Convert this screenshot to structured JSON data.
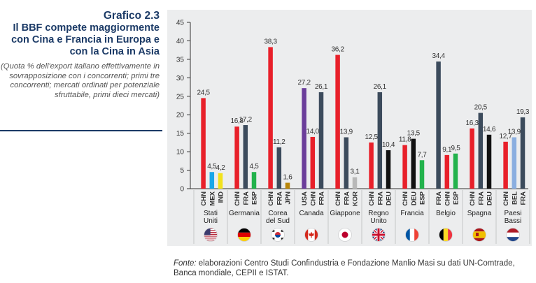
{
  "header": {
    "title": "Grafico 2.3",
    "subtitle": "Il BBF compete maggiormente con Cina e Francia in Europa e con la Cina in Asia",
    "note": "(Quota % dell'export italiano effettivamente in sovrapposizione con i concorrenti; primi tre concorrenti; mercati ordinati per potenziale sfruttabile, primi dieci mercati)"
  },
  "source": {
    "lead": "Fonte:",
    "text": " elaborazioni Centro Studi Confindustria e Fondazione Manlio Masi su dati UN-Comtrade, Banca mondiale, CEPII e ISTAT."
  },
  "chart_data": {
    "type": "bar",
    "ylim": [
      0,
      45
    ],
    "yticks": [
      0,
      5,
      10,
      15,
      20,
      25,
      30,
      35,
      40,
      45
    ],
    "grid": false,
    "legend": "none",
    "groups": [
      {
        "market": "Stati Uniti",
        "flag": "us-flag",
        "bars": [
          {
            "competitor": "CHN",
            "value": 24.5,
            "label": "24,5",
            "color": "#e8202a"
          },
          {
            "competitor": "MEX",
            "value": 4.5,
            "label": "4,5",
            "color": "#1aa7e8"
          },
          {
            "competitor": "IND",
            "value": 4.2,
            "label": "4,2",
            "color": "#f2e21c"
          }
        ]
      },
      {
        "market": "Germania",
        "flag": "de-flag",
        "bars": [
          {
            "competitor": "CHN",
            "value": 16.8,
            "label": "16,8",
            "color": "#e8202a"
          },
          {
            "competitor": "FRA",
            "value": 17.2,
            "label": "17,2",
            "color": "#3c4b5c"
          },
          {
            "competitor": "ESP",
            "value": 4.5,
            "label": "4,5",
            "color": "#22b24c"
          }
        ]
      },
      {
        "market": "Corea del Sud",
        "flag": "kr-flag",
        "bars": [
          {
            "competitor": "CHN",
            "value": 38.3,
            "label": "38,3",
            "color": "#e8202a"
          },
          {
            "competitor": "FRA",
            "value": 11.2,
            "label": "11,2",
            "color": "#3c4b5c"
          },
          {
            "competitor": "JPN",
            "value": 1.6,
            "label": "1,6",
            "color": "#b8860b"
          }
        ]
      },
      {
        "market": "Canada",
        "flag": "ca-flag",
        "bars": [
          {
            "competitor": "USA",
            "value": 27.2,
            "label": "27,2",
            "color": "#6a3d9a"
          },
          {
            "competitor": "CHN",
            "value": 14.0,
            "label": "14,0",
            "color": "#e8202a"
          },
          {
            "competitor": "FRA",
            "value": 26.1,
            "label": "26,1",
            "color": "#3c4b5c"
          }
        ]
      },
      {
        "market": "Giappone",
        "flag": "jp-flag",
        "bars": [
          {
            "competitor": "CHN",
            "value": 36.2,
            "label": "36,2",
            "color": "#e8202a"
          },
          {
            "competitor": "FRA",
            "value": 13.9,
            "label": "13,9",
            "color": "#3c4b5c"
          },
          {
            "competitor": "KOR",
            "value": 3.1,
            "label": "3,1",
            "color": "#b8b8b8"
          }
        ]
      },
      {
        "market": "Regno Unito",
        "flag": "uk-flag",
        "bars": [
          {
            "competitor": "CHN",
            "value": 12.5,
            "label": "12,5",
            "color": "#e8202a"
          },
          {
            "competitor": "FRA",
            "value": 26.1,
            "label": "26,1",
            "color": "#3c4b5c"
          },
          {
            "competitor": "DEU",
            "value": 10.4,
            "label": "10,4",
            "color": "#111111"
          }
        ]
      },
      {
        "market": "Francia",
        "flag": "fr-flag",
        "bars": [
          {
            "competitor": "CHN",
            "value": 11.8,
            "label": "11,8",
            "color": "#e8202a"
          },
          {
            "competitor": "DEU",
            "value": 13.5,
            "label": "13,5",
            "color": "#111111"
          },
          {
            "competitor": "ESP",
            "value": 7.7,
            "label": "7,7",
            "color": "#22b24c"
          }
        ]
      },
      {
        "market": "Belgio",
        "flag": "be-flag",
        "bars": [
          {
            "competitor": "FRA",
            "value": 34.4,
            "label": "34,4",
            "color": "#3c4b5c"
          },
          {
            "competitor": "CHN",
            "value": 9.1,
            "label": "9,1",
            "color": "#e8202a"
          },
          {
            "competitor": "ESP",
            "value": 9.5,
            "label": "9,5",
            "color": "#22b24c"
          }
        ]
      },
      {
        "market": "Spagna",
        "flag": "es-flag",
        "bars": [
          {
            "competitor": "CHN",
            "value": 16.3,
            "label": "16,3",
            "color": "#e8202a"
          },
          {
            "competitor": "FRA",
            "value": 20.5,
            "label": "20,5",
            "color": "#3c4b5c"
          },
          {
            "competitor": "DEU",
            "value": 14.6,
            "label": "14,6",
            "color": "#111111"
          }
        ]
      },
      {
        "market": "Paesi Bassi",
        "flag": "nl-flag",
        "bars": [
          {
            "competitor": "CHN",
            "value": 12.7,
            "label": "12,7",
            "color": "#e8202a"
          },
          {
            "competitor": "BEL",
            "value": 13.9,
            "label": "13,9",
            "color": "#8aaee0"
          },
          {
            "competitor": "FRA",
            "value": 19.3,
            "label": "19,3",
            "color": "#3c4b5c"
          }
        ]
      }
    ]
  }
}
